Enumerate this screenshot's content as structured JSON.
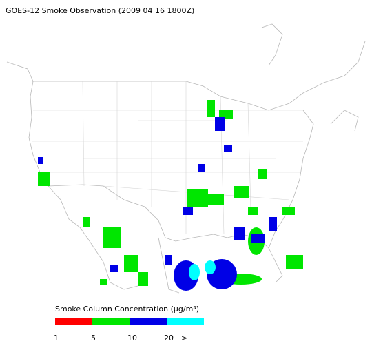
{
  "title": "GOES-12 Smoke Observation (2009 04 16  1800Z)",
  "legend": {
    "title": "Smoke Column Concentration (μg/m³)",
    "colors": [
      "#ff0000",
      "#00e600",
      "#0000e6",
      "#00ffff"
    ],
    "labels": [
      "1",
      "5",
      "10",
      "20",
      ">"
    ]
  }
}
